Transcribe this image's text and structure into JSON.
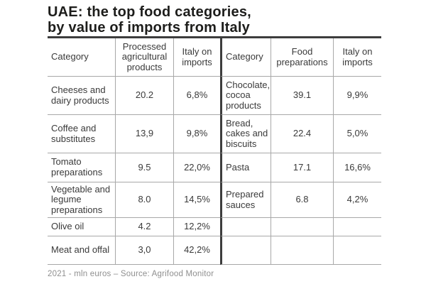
{
  "title": {
    "line1": "UAE: the top food categories,",
    "line2": "by value of imports from Italy"
  },
  "footer": "2021 - mln euros – Source: Agrifood Monitor",
  "colors": {
    "title_text": "#1d1d1b",
    "body_text": "#3a3a3a",
    "grid_line": "#a8a8a8",
    "accent_line": "#3d3d3d",
    "footer_text": "#8f8f8f",
    "background": "#ffffff"
  },
  "chart_data": {
    "type": "table",
    "title": "UAE: the top food categories, by value of imports from Italy",
    "source_note": "2021 - mln euros – Source: Agrifood Monitor",
    "tables": [
      {
        "columns": [
          "Category",
          "Processed agricultural products",
          "Italy on imports"
        ],
        "rows": [
          [
            "Cheeses and dairy products",
            "20.2",
            "6,8%"
          ],
          [
            "Coffee and substitutes",
            "13,9",
            "9,8%"
          ],
          [
            "Tomato preparations",
            "9.5",
            "22,0%"
          ],
          [
            "Vegetable and legume preparations",
            "8.0",
            "14,5%"
          ],
          [
            "Olive oil",
            "4.2",
            "12,2%"
          ],
          [
            "Meat and offal",
            "3,0",
            "42,2%"
          ]
        ]
      },
      {
        "columns": [
          "Category",
          "Food preparations",
          "Italy on imports"
        ],
        "rows": [
          [
            "Chocolate, cocoa products",
            "39.1",
            "9,9%"
          ],
          [
            "Bread, cakes and biscuits",
            "22.4",
            "5,0%"
          ],
          [
            "Pasta",
            "17.1",
            "16,6%"
          ],
          [
            "Prepared sauces",
            "6.8",
            "4,2%"
          ],
          [
            "",
            "",
            ""
          ],
          [
            "",
            "",
            ""
          ]
        ]
      }
    ]
  }
}
